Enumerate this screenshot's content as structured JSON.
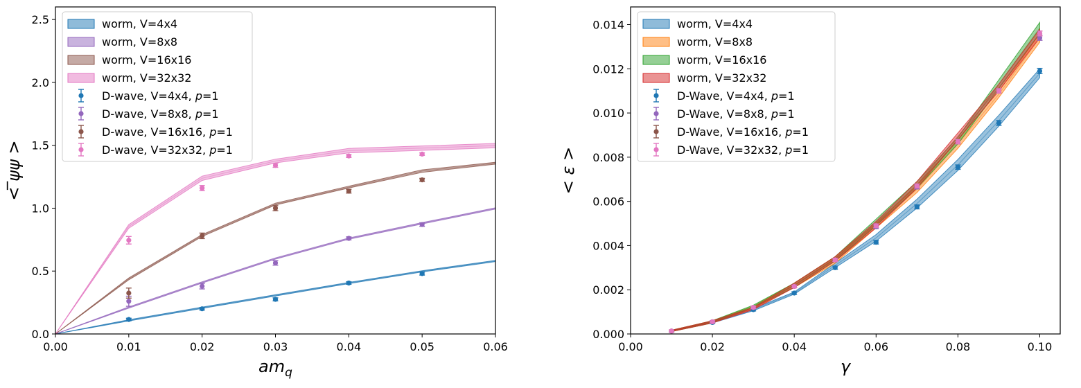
{
  "chart_data": [
    {
      "type": "line",
      "xlabel": "am_q",
      "ylabel": "< ̅ψψ >",
      "xlim": [
        0,
        0.06
      ],
      "ylim": [
        0,
        2.6
      ],
      "x_ticks": [
        "0.00",
        "0.01",
        "0.02",
        "0.03",
        "0.04",
        "0.05",
        "0.06"
      ],
      "y_ticks": [
        "0.0",
        "0.5",
        "1.0",
        "1.5",
        "2.0",
        "2.5"
      ],
      "grid": false,
      "legend_position": "upper-left",
      "bands": [
        {
          "name": "worm, V=4x4",
          "color": "#1f77b4",
          "x": [
            0,
            0.01,
            0.02,
            0.03,
            0.04,
            0.05,
            0.06
          ],
          "lo": [
            0,
            0.103,
            0.203,
            0.302,
            0.4,
            0.493,
            0.575
          ],
          "hi": [
            0,
            0.113,
            0.213,
            0.312,
            0.41,
            0.503,
            0.585
          ]
        },
        {
          "name": "worm, V=8x8",
          "color": "#9467bd",
          "x": [
            0,
            0.01,
            0.02,
            0.03,
            0.04,
            0.05,
            0.06
          ],
          "lo": [
            0,
            0.205,
            0.405,
            0.595,
            0.753,
            0.875,
            0.993
          ],
          "hi": [
            0,
            0.215,
            0.415,
            0.605,
            0.763,
            0.885,
            1.003
          ]
        },
        {
          "name": "worm, V=16x16",
          "color": "#8c564b",
          "x": [
            0,
            0.01,
            0.02,
            0.03,
            0.04,
            0.05,
            0.06
          ],
          "lo": [
            0,
            0.43,
            0.775,
            1.025,
            1.16,
            1.285,
            1.35
          ],
          "hi": [
            0,
            0.445,
            0.79,
            1.04,
            1.175,
            1.305,
            1.365
          ]
        },
        {
          "name": "worm, V=32x32",
          "color": "#e377c2",
          "x": [
            0,
            0.01,
            0.02,
            0.03,
            0.04,
            0.05,
            0.06
          ],
          "lo": [
            0,
            0.84,
            1.22,
            1.36,
            1.44,
            1.46,
            1.48
          ],
          "hi": [
            0,
            0.87,
            1.255,
            1.39,
            1.475,
            1.495,
            1.515
          ]
        }
      ],
      "series": [
        {
          "name": "D-wave, V=4x4, p=1",
          "color": "#1f77b4",
          "x": [
            0.01,
            0.02,
            0.03,
            0.04,
            0.05
          ],
          "y": [
            0.115,
            0.2,
            0.275,
            0.405,
            0.48
          ],
          "err": [
            0.01,
            0.01,
            0.012,
            0.01,
            0.012
          ]
        },
        {
          "name": "D-wave, V=8x8, p=1",
          "color": "#9467bd",
          "x": [
            0.01,
            0.02,
            0.03,
            0.04,
            0.05
          ],
          "y": [
            0.26,
            0.38,
            0.565,
            0.76,
            0.87
          ],
          "err": [
            0.04,
            0.022,
            0.018,
            0.012,
            0.014
          ]
        },
        {
          "name": "D-wave, V=16x16, p=1",
          "color": "#8c564b",
          "x": [
            0.01,
            0.02,
            0.03,
            0.04,
            0.05
          ],
          "y": [
            0.325,
            0.78,
            1.0,
            1.135,
            1.225
          ],
          "err": [
            0.04,
            0.022,
            0.02,
            0.015,
            0.012
          ]
        },
        {
          "name": "D-wave, V=32x32, p=1",
          "color": "#e377c2",
          "x": [
            0.01,
            0.02,
            0.03,
            0.04,
            0.05
          ],
          "y": [
            0.745,
            1.16,
            1.34,
            1.415,
            1.43
          ],
          "err": [
            0.03,
            0.02,
            0.015,
            0.012,
            0.01
          ]
        }
      ],
      "legend": [
        {
          "label": "worm, V=4x4",
          "kind": "band",
          "color": "#1f77b4"
        },
        {
          "label": "worm, V=8x8",
          "kind": "band",
          "color": "#9467bd"
        },
        {
          "label": "worm, V=16x16",
          "kind": "band",
          "color": "#8c564b"
        },
        {
          "label": "worm, V=32x32",
          "kind": "band",
          "color": "#e377c2"
        },
        {
          "label": "D-wave, V=4x4, ",
          "italic": "p",
          "suffix": "=1",
          "kind": "point",
          "color": "#1f77b4"
        },
        {
          "label": "D-wave, V=8x8, ",
          "italic": "p",
          "suffix": "=1",
          "kind": "point",
          "color": "#9467bd"
        },
        {
          "label": "D-wave, V=16x16, ",
          "italic": "p",
          "suffix": "=1",
          "kind": "point",
          "color": "#8c564b"
        },
        {
          "label": "D-wave, V=32x32, ",
          "italic": "p",
          "suffix": "=1",
          "kind": "point",
          "color": "#e377c2"
        }
      ]
    },
    {
      "type": "line",
      "xlabel": "γ",
      "ylabel": "< ε >",
      "xlim": [
        0,
        0.105
      ],
      "ylim": [
        0,
        0.0148
      ],
      "x_ticks": [
        "0.00",
        "0.02",
        "0.04",
        "0.06",
        "0.08",
        "0.10"
      ],
      "y_ticks": [
        "0.000",
        "0.002",
        "0.004",
        "0.006",
        "0.008",
        "0.010",
        "0.012",
        "0.014"
      ],
      "grid": false,
      "legend_position": "upper-left",
      "bands": [
        {
          "name": "worm, V=4x4",
          "color": "#1f77b4",
          "x": [
            0.01,
            0.02,
            0.03,
            0.04,
            0.05,
            0.06,
            0.07,
            0.08,
            0.09,
            0.1
          ],
          "lo": [
            0.00011,
            0.0005,
            0.00105,
            0.0018,
            0.003,
            0.0042,
            0.0057,
            0.0074,
            0.0094,
            0.0116
          ],
          "hi": [
            0.00017,
            0.00058,
            0.00115,
            0.0019,
            0.0032,
            0.0045,
            0.0061,
            0.0079,
            0.0099,
            0.012
          ]
        },
        {
          "name": "worm, V=8x8",
          "color": "#ff7f0e",
          "x": [
            0.01,
            0.02,
            0.03,
            0.04,
            0.05,
            0.06,
            0.07,
            0.08,
            0.09,
            0.1
          ],
          "lo": [
            0.00011,
            0.0005,
            0.00115,
            0.0021,
            0.0032,
            0.0048,
            0.0064,
            0.0084,
            0.0107,
            0.0132
          ],
          "hi": [
            0.00017,
            0.0006,
            0.00125,
            0.0023,
            0.0035,
            0.005,
            0.0067,
            0.0088,
            0.011,
            0.0136
          ]
        },
        {
          "name": "worm, V=16x16",
          "color": "#2ca02c",
          "x": [
            0.01,
            0.02,
            0.03,
            0.04,
            0.05,
            0.06,
            0.07,
            0.08,
            0.09,
            0.1
          ],
          "lo": [
            0.00011,
            0.0005,
            0.0012,
            0.0021,
            0.0033,
            0.0049,
            0.0066,
            0.0086,
            0.0111,
            0.0136
          ],
          "hi": [
            0.00017,
            0.0006,
            0.0013,
            0.0023,
            0.0035,
            0.0052,
            0.0069,
            0.0089,
            0.0115,
            0.0141
          ]
        },
        {
          "name": "worm, V=32x32",
          "color": "#d62728",
          "x": [
            0.01,
            0.02,
            0.03,
            0.04,
            0.05,
            0.06,
            0.07,
            0.08,
            0.09,
            0.1
          ],
          "lo": [
            0.00011,
            0.0005,
            0.0011,
            0.0021,
            0.0033,
            0.0048,
            0.0066,
            0.0088,
            0.011,
            0.0134
          ],
          "hi": [
            0.00017,
            0.0006,
            0.0012,
            0.0023,
            0.0035,
            0.0051,
            0.0069,
            0.0091,
            0.0113,
            0.0138
          ]
        }
      ],
      "series": [
        {
          "name": "D-Wave, V=4x4, p=1",
          "color": "#1f77b4",
          "x": [
            0.01,
            0.02,
            0.03,
            0.04,
            0.05,
            0.06,
            0.07,
            0.08,
            0.09,
            0.1
          ],
          "y": [
            0.00013,
            0.00052,
            0.0011,
            0.00185,
            0.003,
            0.00415,
            0.00575,
            0.00755,
            0.00955,
            0.0119
          ],
          "err": [
            5e-05,
            5e-05,
            6e-05,
            6e-05,
            7e-05,
            8e-05,
            9e-05,
            0.0001,
            0.00011,
            0.00012
          ]
        },
        {
          "name": "D-Wave, V=8x8, p=1",
          "color": "#9467bd",
          "x": [
            0.01,
            0.02,
            0.03,
            0.04,
            0.05,
            0.06,
            0.07,
            0.08,
            0.09,
            0.1
          ],
          "y": [
            0.00013,
            0.00055,
            0.0012,
            0.00215,
            0.00335,
            0.00485,
            0.00665,
            0.0087,
            0.011,
            0.0134
          ],
          "err": [
            5e-05,
            5e-05,
            6e-05,
            6e-05,
            7e-05,
            8e-05,
            9e-05,
            0.0001,
            0.0001,
            0.00011
          ]
        },
        {
          "name": "D-Wave, V=16x16, p=1",
          "color": "#8c564b",
          "x": [
            0.01,
            0.02,
            0.03,
            0.04,
            0.05,
            0.06,
            0.07,
            0.08,
            0.09,
            0.1
          ],
          "y": [
            0.00013,
            0.00055,
            0.0012,
            0.00215,
            0.00335,
            0.0049,
            0.0067,
            0.0087,
            0.011,
            0.0136
          ],
          "err": [
            5e-05,
            5e-05,
            6e-05,
            6e-05,
            7e-05,
            8e-05,
            9e-05,
            0.0001,
            0.0001,
            0.00011
          ]
        },
        {
          "name": "D-Wave, V=32x32, p=1",
          "color": "#e377c2",
          "x": [
            0.01,
            0.02,
            0.03,
            0.04,
            0.05,
            0.06,
            0.07,
            0.08,
            0.09,
            0.1
          ],
          "y": [
            0.00013,
            0.00055,
            0.0012,
            0.00215,
            0.00335,
            0.0049,
            0.0067,
            0.0087,
            0.011,
            0.0136
          ],
          "err": [
            5e-05,
            5e-05,
            6e-05,
            6e-05,
            7e-05,
            8e-05,
            9e-05,
            0.0001,
            0.0001,
            0.00011
          ]
        }
      ],
      "legend": [
        {
          "label": "worm, V=4x4",
          "kind": "band",
          "color": "#1f77b4"
        },
        {
          "label": "worm, V=8x8",
          "kind": "band",
          "color": "#ff7f0e"
        },
        {
          "label": "worm, V=16x16",
          "kind": "band",
          "color": "#2ca02c"
        },
        {
          "label": "worm, V=32x32",
          "kind": "band",
          "color": "#d62728"
        },
        {
          "label": "D-Wave, V=4x4, ",
          "italic": "p",
          "suffix": "=1",
          "kind": "point",
          "color": "#1f77b4"
        },
        {
          "label": "D-Wave, V=8x8, ",
          "italic": "p",
          "suffix": "=1",
          "kind": "point",
          "color": "#9467bd"
        },
        {
          "label": "D-Wave, V=16x16, ",
          "italic": "p",
          "suffix": "=1",
          "kind": "point",
          "color": "#8c564b"
        },
        {
          "label": "D-Wave, V=32x32, ",
          "italic": "p",
          "suffix": "=1",
          "kind": "point",
          "color": "#e377c2"
        }
      ]
    }
  ]
}
